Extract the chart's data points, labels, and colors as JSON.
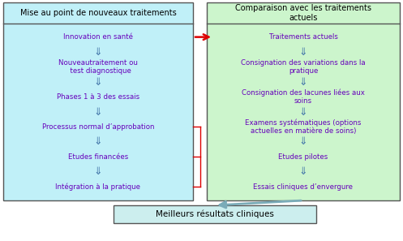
{
  "fig_width": 4.97,
  "fig_height": 2.97,
  "dpi": 100,
  "left_box": {
    "title": "Mise au point de nouveaux traitements",
    "items": [
      "Innovation en santé",
      "Nouveautraitement ou\n  test diagnostique",
      "Phases 1 à 3 des essais",
      "Processus normal d’approbation",
      "Etudes financées",
      "Intégration à la pratique"
    ],
    "bg_color": "#c0f0f8",
    "border_color": "#555555",
    "text_color": "#6600bb",
    "title_color": "#000000"
  },
  "right_box": {
    "title": "Comparaison avec les traitements\nactuels",
    "items": [
      "Traitements actuels",
      "Consignation des variations dans la\npratique",
      "Consignation des lacunes liées aux\nsoins",
      "Examens systématiques (options\nactuelles en matière de soins)",
      "Etudes pilotes",
      "Essais cliniques d’envergure"
    ],
    "bg_color": "#ccf5cc",
    "border_color": "#555555",
    "text_color": "#6600bb",
    "title_color": "#000000"
  },
  "bottom_box": {
    "text": "Meilleurs résultats cliniques",
    "bg_color": "#cceeee",
    "border_color": "#555555",
    "text_color": "#000000"
  },
  "red_color": "#dd0000",
  "down_arrow_color": "#4477aa",
  "bottom_arrow_color": "#7aabb8",
  "down_arrow_char": "⇓"
}
